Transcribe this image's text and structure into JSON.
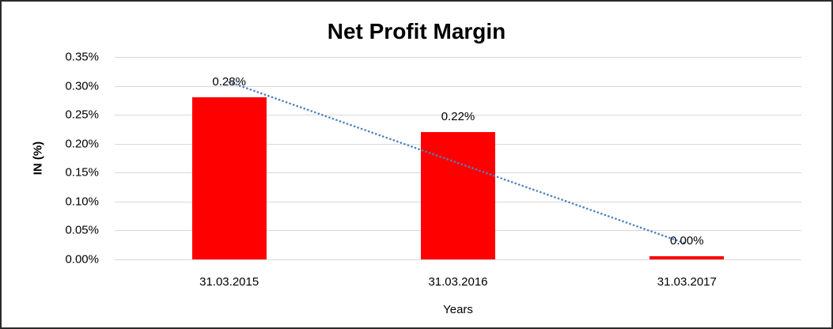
{
  "chart_data": {
    "type": "bar",
    "title": "Net Profit Margin",
    "categories": [
      "31.03.2015",
      "31.03.2016",
      "31.03.2017"
    ],
    "values": [
      0.28,
      0.22,
      0.0
    ],
    "data_labels": [
      "0.28%",
      "0.22%",
      "0.00%"
    ],
    "xlabel": "Years",
    "ylabel": "IN (%)",
    "ylim": [
      0,
      0.35
    ],
    "ytick_step": 0.05,
    "ytick_labels": [
      "0.00%",
      "0.05%",
      "0.10%",
      "0.15%",
      "0.20%",
      "0.25%",
      "0.30%",
      "0.35%"
    ],
    "grid": true,
    "legend_position": "none",
    "bar_color": "#ff0000",
    "gridline_color": "#d9d9d9",
    "text_color": "#000000",
    "trendline": {
      "type": "linear",
      "style": "dotted",
      "color": "#4f81bd"
    }
  }
}
